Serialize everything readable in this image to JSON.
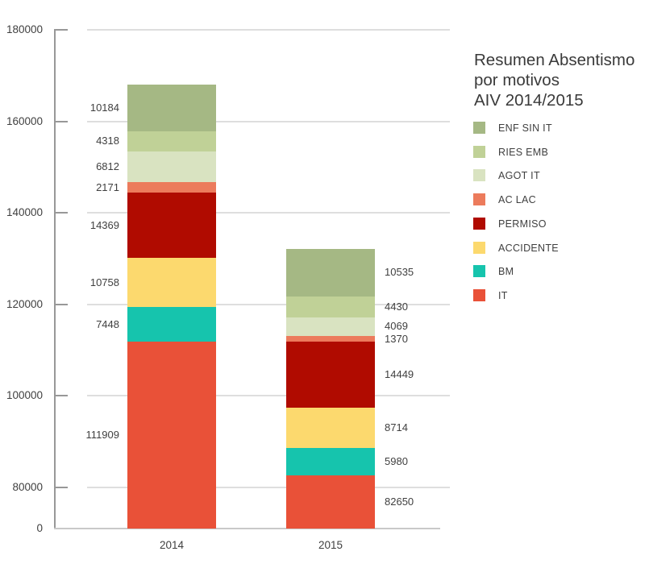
{
  "title": {
    "lines": [
      "Resumen Absentismo",
      "por motivos",
      "AIV 2014/2015"
    ]
  },
  "chart_data": {
    "type": "bar",
    "stacked": true,
    "title": "Resumen Absentismo por motivos AIV 2014/2015",
    "categories": [
      "2014",
      "2015"
    ],
    "stack_order": "bottom-to-top",
    "series": [
      {
        "name": "IT",
        "color": "#e95138",
        "values": [
          111909,
          82650
        ]
      },
      {
        "name": "BM",
        "color": "#16c4ad",
        "values": [
          7448,
          5980
        ]
      },
      {
        "name": "ACCIDENTE",
        "color": "#fcd96e",
        "values": [
          10758,
          8714
        ]
      },
      {
        "name": "PERMISO",
        "color": "#b00b00",
        "values": [
          14369,
          14449
        ]
      },
      {
        "name": "AC LAC",
        "color": "#ec7b5c",
        "values": [
          2171,
          1370
        ]
      },
      {
        "name": "AGOT IT",
        "color": "#d9e3c1",
        "values": [
          6812,
          4069
        ]
      },
      {
        "name": "RIES EMB",
        "color": "#c0d197",
        "values": [
          4318,
          4430
        ]
      },
      {
        "name": "ENF SIN IT",
        "color": "#a5b884",
        "values": [
          10184,
          10535
        ]
      }
    ],
    "legend_position": "right",
    "legend_order_top_to_bottom": [
      "ENF SIN IT",
      "RIES EMB",
      "AGOT IT",
      "AC LAC",
      "PERMISO",
      "ACCIDENTE",
      "BM",
      "IT"
    ],
    "y_ticks": [
      0,
      80000,
      100000,
      120000,
      140000,
      160000,
      180000
    ],
    "ylim": [
      0,
      180000
    ],
    "axis_break": {
      "below_value": 80000,
      "note": "y axis is compressed between 0 and 80000"
    },
    "grid": true,
    "value_label_side_by_category": {
      "2014": "left-of-bar",
      "2015": "right-of-bar"
    }
  },
  "colors": {
    "gridline": "#dedede",
    "axis_line": "#989898",
    "baseline": "#c9c9c9",
    "text": "#3f3f3f"
  }
}
